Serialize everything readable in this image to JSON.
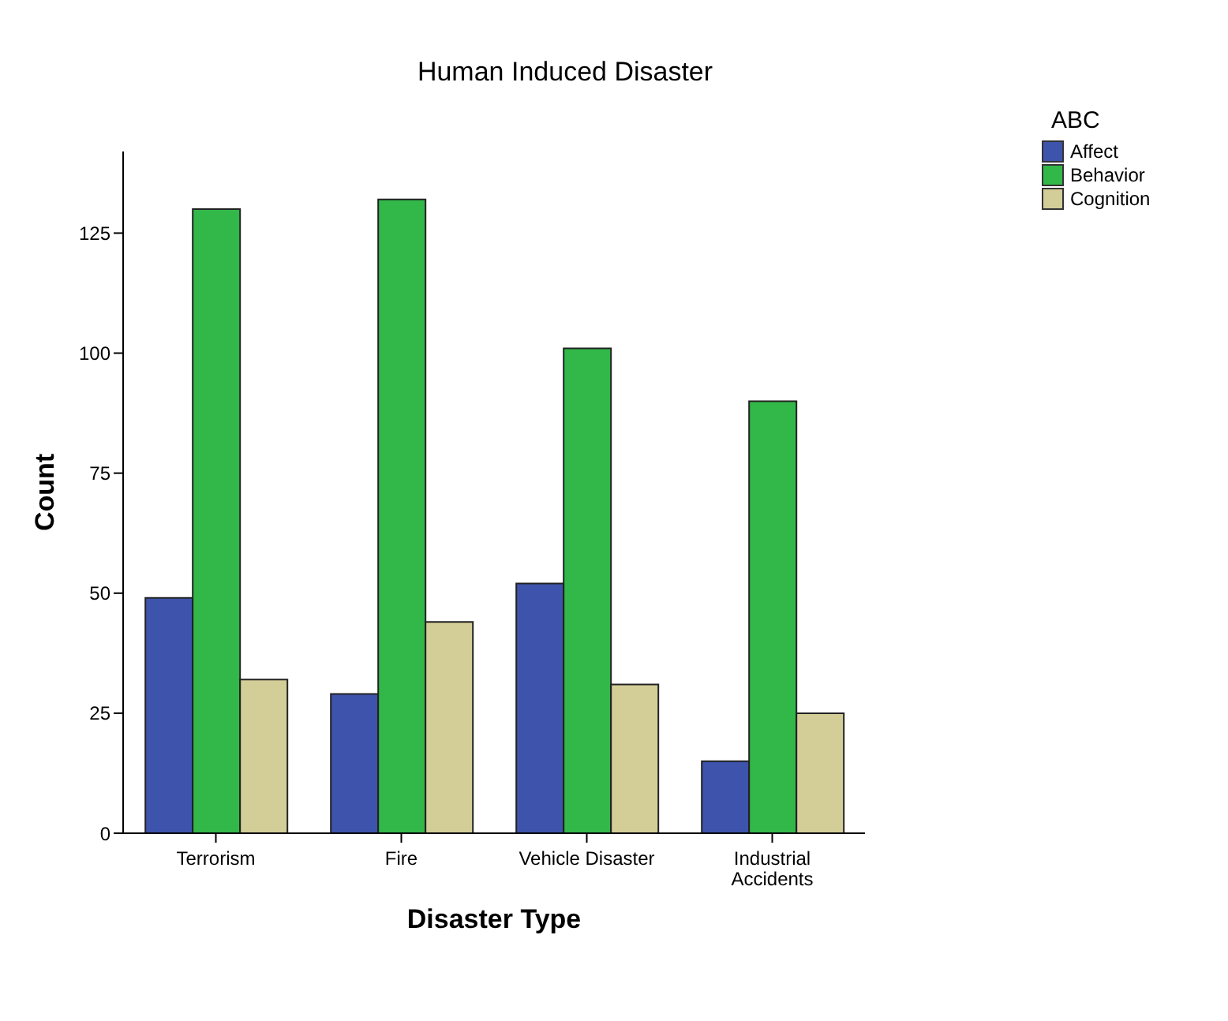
{
  "chart_data": {
    "type": "bar",
    "title": "Human Induced Disaster",
    "xlabel": "Disaster Type",
    "ylabel": "Count",
    "legend_title": "ABC",
    "categories": [
      "Terrorism",
      "Fire",
      "Vehicle Disaster",
      "Industrial Accidents"
    ],
    "series": [
      {
        "name": "Affect",
        "color": "#3e53ab",
        "values": [
          49,
          29,
          52,
          15
        ]
      },
      {
        "name": "Behavior",
        "color": "#32b749",
        "values": [
          130,
          132,
          101,
          90
        ]
      },
      {
        "name": "Cognition",
        "color": "#d3ce98",
        "values": [
          32,
          44,
          31,
          25
        ]
      }
    ],
    "ylim": [
      0,
      142
    ],
    "yticks": [
      0,
      25,
      50,
      75,
      100,
      125
    ],
    "grid": false,
    "legend": "top right"
  }
}
